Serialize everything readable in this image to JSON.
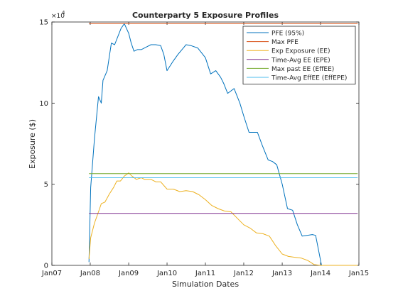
{
  "chart_data": {
    "type": "line",
    "title": "Counterparty 5 Exposure Profiles",
    "xlabel": "Simulation Dates",
    "ylabel": "Exposure ($)",
    "y_exponent_label": "×10",
    "y_exponent_power": "4",
    "y_scale_note": "y values in units of 10^4 $",
    "xlim": [
      "2007-01-01",
      "2015-01-01"
    ],
    "ylim": [
      0,
      15
    ],
    "x_ticks": [
      "2007-01-01",
      "2008-01-01",
      "2009-01-01",
      "2010-01-01",
      "2011-01-01",
      "2012-01-01",
      "2013-01-01",
      "2014-01-01",
      "2015-01-01"
    ],
    "x_tick_labels": [
      "Jan07",
      "Jan08",
      "Jan09",
      "Jan10",
      "Jan11",
      "Jan12",
      "Jan13",
      "Jan14",
      "Jan15"
    ],
    "y_ticks": [
      0,
      5,
      10,
      15
    ],
    "y_tick_labels": [
      "0",
      "5",
      "10",
      "15"
    ],
    "grid": false,
    "legend_position": "top-right",
    "series": [
      {
        "name": "PFE (95%)",
        "color": "#0072BD",
        "x": [
          "2007-12-20",
          "2008-01-05",
          "2008-02-10",
          "2008-03-20",
          "2008-04-15",
          "2008-05-01",
          "2008-06-10",
          "2008-07-20",
          "2008-08-20",
          "2008-09-20",
          "2008-10-20",
          "2008-11-20",
          "2009-01-01",
          "2009-01-25",
          "2009-02-20",
          "2009-03-25",
          "2009-05-01",
          "2009-06-01",
          "2009-07-01",
          "2009-08-01",
          "2009-09-15",
          "2009-11-01",
          "2009-12-01",
          "2010-01-01",
          "2010-03-01",
          "2010-04-15",
          "2010-07-01",
          "2010-08-15",
          "2010-10-20",
          "2011-01-01",
          "2011-02-20",
          "2011-04-10",
          "2011-05-25",
          "2011-06-25",
          "2011-08-01",
          "2011-10-01",
          "2011-11-25",
          "2012-01-01",
          "2012-02-20",
          "2012-03-25",
          "2012-05-10",
          "2012-06-25",
          "2012-08-20",
          "2012-10-01",
          "2012-11-10",
          "2013-01-01",
          "2013-02-20",
          "2013-04-10",
          "2013-05-25",
          "2013-07-10",
          "2013-10-15",
          "2013-11-15",
          "2014-01-10",
          "2014-02-20",
          "2014-04-05",
          "2014-05-15",
          "2014-06-15",
          "2014-12-20"
        ],
        "values": [
          0.2,
          4.8,
          7.8,
          10.4,
          10.0,
          11.4,
          12.0,
          13.7,
          13.6,
          14.1,
          14.6,
          14.9,
          14.3,
          13.7,
          13.2,
          13.3,
          13.3,
          13.4,
          13.5,
          13.6,
          13.6,
          13.55,
          13.0,
          12.0,
          12.6,
          13.0,
          13.6,
          13.55,
          13.4,
          12.8,
          11.8,
          12.0,
          11.6,
          11.2,
          10.6,
          10.9,
          10.0,
          9.2,
          8.2,
          8.2,
          8.2,
          7.4,
          6.5,
          6.4,
          6.2,
          5.0,
          3.5,
          3.4,
          2.5,
          1.8,
          1.9,
          1.85,
          0.0,
          0.0,
          0.0,
          0.0,
          0.0,
          0.0
        ]
      },
      {
        "name": "Max PFE",
        "color": "#D95319",
        "x": [
          "2007-12-20",
          "2014-12-20"
        ],
        "values": [
          14.9,
          14.9
        ]
      },
      {
        "name": "Exp Exposure (EE)",
        "color": "#EDB120",
        "x": [
          "2007-12-20",
          "2008-01-05",
          "2008-02-10",
          "2008-03-20",
          "2008-04-15",
          "2008-05-20",
          "2008-07-01",
          "2008-08-10",
          "2008-09-10",
          "2008-10-15",
          "2008-11-20",
          "2009-01-01",
          "2009-02-01",
          "2009-03-15",
          "2009-05-01",
          "2009-06-01",
          "2009-08-01",
          "2009-09-15",
          "2009-11-01",
          "2010-01-01",
          "2010-03-01",
          "2010-05-01",
          "2010-07-01",
          "2010-09-01",
          "2010-11-01",
          "2011-01-01",
          "2011-03-01",
          "2011-05-01",
          "2011-07-01",
          "2011-09-01",
          "2011-11-01",
          "2012-01-01",
          "2012-03-01",
          "2012-05-01",
          "2012-07-01",
          "2012-09-01",
          "2012-11-01",
          "2013-01-01",
          "2013-03-01",
          "2013-05-01",
          "2013-07-01",
          "2013-09-01",
          "2013-11-01",
          "2014-01-01",
          "2014-03-01",
          "2014-05-01",
          "2014-06-15",
          "2014-12-20"
        ],
        "values": [
          0.4,
          1.7,
          2.6,
          3.3,
          3.8,
          3.9,
          4.4,
          4.8,
          5.2,
          5.2,
          5.5,
          5.7,
          5.5,
          5.3,
          5.4,
          5.3,
          5.3,
          5.15,
          5.15,
          4.7,
          4.7,
          4.55,
          4.6,
          4.55,
          4.35,
          4.05,
          3.7,
          3.5,
          3.35,
          3.3,
          2.9,
          2.5,
          2.3,
          2.0,
          1.95,
          1.8,
          1.2,
          0.7,
          0.55,
          0.5,
          0.45,
          0.3,
          0.05,
          0.0,
          0.0,
          0.0,
          0.0,
          0.0
        ]
      },
      {
        "name": "Time-Avg EE (EPE)",
        "color": "#7E2F8E",
        "x": [
          "2007-12-20",
          "2014-12-20"
        ],
        "values": [
          3.2,
          3.2
        ]
      },
      {
        "name": "Max past EE (EffEE)",
        "color": "#77AC30",
        "x": [
          "2007-12-20",
          "2014-12-20"
        ],
        "values": [
          5.65,
          5.65
        ]
      },
      {
        "name": "Time-Avg EffEE (EffEPE)",
        "color": "#4DBEEE",
        "x": [
          "2007-12-20",
          "2014-12-20"
        ],
        "values": [
          5.4,
          5.4
        ]
      }
    ]
  }
}
